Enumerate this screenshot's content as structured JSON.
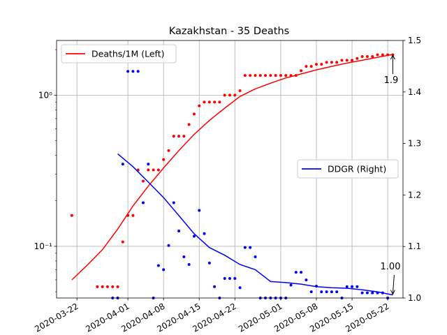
{
  "chart_data": {
    "type": "line",
    "title": "Kazakhstan - 35 Deaths",
    "xlabel": "",
    "ylabel_left": "",
    "ylabel_right": "",
    "x_domain": [
      "2020-03-18",
      "2020-05-25"
    ],
    "x_ticks": [
      "2020-03-22",
      "2020-04-01",
      "2020-04-08",
      "2020-04-15",
      "2020-04-22",
      "2020-05-01",
      "2020-05-08",
      "2020-05-15",
      "2020-05-22"
    ],
    "y_left": {
      "scale": "log",
      "ylim": [
        0.0455,
        2.3
      ],
      "ticks": [
        0.1,
        1.0
      ],
      "tick_labels": [
        "10⁻¹",
        "10⁰"
      ]
    },
    "y_right": {
      "scale": "linear",
      "ylim": [
        1.0,
        1.5
      ],
      "ticks": [
        1.0,
        1.1,
        1.2,
        1.3,
        1.4,
        1.5
      ],
      "tick_labels": [
        "1.0",
        "1.1",
        "1.2",
        "1.3",
        "1.4",
        "1.5"
      ]
    },
    "grid": true,
    "series": [
      {
        "name": "Deaths/1M (Left)",
        "axis": "left",
        "color": "#ff0000",
        "line": [
          [
            "2020-03-21",
            0.06
          ],
          [
            "2020-03-24",
            0.075
          ],
          [
            "2020-03-27",
            0.095
          ],
          [
            "2020-03-30",
            0.13
          ],
          [
            "2020-04-02",
            0.185
          ],
          [
            "2020-04-05",
            0.25
          ],
          [
            "2020-04-08",
            0.33
          ],
          [
            "2020-04-11",
            0.43
          ],
          [
            "2020-04-14",
            0.55
          ],
          [
            "2020-04-17",
            0.68
          ],
          [
            "2020-04-20",
            0.82
          ],
          [
            "2020-04-23",
            0.98
          ],
          [
            "2020-04-26",
            1.1
          ],
          [
            "2020-04-29",
            1.2
          ],
          [
            "2020-05-02",
            1.3
          ],
          [
            "2020-05-05",
            1.38
          ],
          [
            "2020-05-08",
            1.47
          ],
          [
            "2020-05-11",
            1.55
          ],
          [
            "2020-05-14",
            1.63
          ],
          [
            "2020-05-17",
            1.7
          ],
          [
            "2020-05-20",
            1.78
          ],
          [
            "2020-05-23",
            1.86
          ]
        ],
        "points": [
          [
            "2020-03-21",
            0.16
          ],
          [
            "2020-03-26",
            0.054
          ],
          [
            "2020-03-27",
            0.054
          ],
          [
            "2020-03-28",
            0.054
          ],
          [
            "2020-03-29",
            0.054
          ],
          [
            "2020-03-30",
            0.054
          ],
          [
            "2020-03-31",
            0.107
          ],
          [
            "2020-04-01",
            0.16
          ],
          [
            "2020-04-02",
            0.16
          ],
          [
            "2020-04-03",
            0.32
          ],
          [
            "2020-04-04",
            0.27
          ],
          [
            "2020-04-05",
            0.32
          ],
          [
            "2020-04-06",
            0.32
          ],
          [
            "2020-04-07",
            0.32
          ],
          [
            "2020-04-08",
            0.375
          ],
          [
            "2020-04-09",
            0.43
          ],
          [
            "2020-04-10",
            0.535
          ],
          [
            "2020-04-11",
            0.535
          ],
          [
            "2020-04-12",
            0.535
          ],
          [
            "2020-04-13",
            0.64
          ],
          [
            "2020-04-14",
            0.75
          ],
          [
            "2020-04-15",
            0.85
          ],
          [
            "2020-04-16",
            0.9
          ],
          [
            "2020-04-17",
            0.9
          ],
          [
            "2020-04-18",
            0.9
          ],
          [
            "2020-04-19",
            0.9
          ],
          [
            "2020-04-20",
            1.0
          ],
          [
            "2020-04-21",
            1.0
          ],
          [
            "2020-04-22",
            1.0
          ],
          [
            "2020-04-23",
            1.07
          ],
          [
            "2020-04-24",
            1.35
          ],
          [
            "2020-04-25",
            1.35
          ],
          [
            "2020-04-26",
            1.35
          ],
          [
            "2020-04-27",
            1.35
          ],
          [
            "2020-04-28",
            1.35
          ],
          [
            "2020-04-29",
            1.35
          ],
          [
            "2020-04-30",
            1.35
          ],
          [
            "2020-05-01",
            1.35
          ],
          [
            "2020-05-02",
            1.35
          ],
          [
            "2020-05-03",
            1.35
          ],
          [
            "2020-05-04",
            1.35
          ],
          [
            "2020-05-05",
            1.45
          ],
          [
            "2020-05-06",
            1.55
          ],
          [
            "2020-05-07",
            1.55
          ],
          [
            "2020-05-08",
            1.6
          ],
          [
            "2020-05-09",
            1.6
          ],
          [
            "2020-05-10",
            1.65
          ],
          [
            "2020-05-11",
            1.65
          ],
          [
            "2020-05-12",
            1.65
          ],
          [
            "2020-05-13",
            1.7
          ],
          [
            "2020-05-14",
            1.7
          ],
          [
            "2020-05-15",
            1.7
          ],
          [
            "2020-05-16",
            1.75
          ],
          [
            "2020-05-17",
            1.8
          ],
          [
            "2020-05-18",
            1.8
          ],
          [
            "2020-05-19",
            1.8
          ],
          [
            "2020-05-20",
            1.85
          ],
          [
            "2020-05-21",
            1.85
          ],
          [
            "2020-05-22",
            1.85
          ],
          [
            "2020-05-23",
            1.85
          ]
        ]
      },
      {
        "name": "DDGR (Right)",
        "axis": "right",
        "color": "#0000ff",
        "line": [
          [
            "2020-03-30",
            1.28
          ],
          [
            "2020-04-02",
            1.255
          ],
          [
            "2020-04-05",
            1.225
          ],
          [
            "2020-04-08",
            1.195
          ],
          [
            "2020-04-11",
            1.16
          ],
          [
            "2020-04-14",
            1.125
          ],
          [
            "2020-04-17",
            1.098
          ],
          [
            "2020-04-20",
            1.083
          ],
          [
            "2020-04-23",
            1.065
          ],
          [
            "2020-04-26",
            1.055
          ],
          [
            "2020-04-29",
            1.032
          ],
          [
            "2020-05-02",
            1.03
          ],
          [
            "2020-05-05",
            1.027
          ],
          [
            "2020-05-08",
            1.022
          ],
          [
            "2020-05-11",
            1.02
          ],
          [
            "2020-05-14",
            1.019
          ],
          [
            "2020-05-17",
            1.016
          ],
          [
            "2020-05-20",
            1.012
          ],
          [
            "2020-05-23",
            1.006
          ]
        ],
        "points": [
          [
            "2020-03-29",
            1.0
          ],
          [
            "2020-03-30",
            1.0
          ],
          [
            "2020-03-31",
            1.26
          ],
          [
            "2020-04-01",
            1.44
          ],
          [
            "2020-04-02",
            1.44
          ],
          [
            "2020-04-03",
            1.44
          ],
          [
            "2020-04-04",
            1.185
          ],
          [
            "2020-04-05",
            1.26
          ],
          [
            "2020-04-06",
            1.0
          ],
          [
            "2020-04-07",
            1.063
          ],
          [
            "2020-04-08",
            1.055
          ],
          [
            "2020-04-09",
            1.102
          ],
          [
            "2020-04-10",
            1.185
          ],
          [
            "2020-04-11",
            1.13
          ],
          [
            "2020-04-12",
            1.08
          ],
          [
            "2020-04-13",
            1.065
          ],
          [
            "2020-04-14",
            1.12
          ],
          [
            "2020-04-15",
            1.17
          ],
          [
            "2020-04-16",
            1.125
          ],
          [
            "2020-04-17",
            1.068
          ],
          [
            "2020-04-18",
            1.022
          ],
          [
            "2020-04-19",
            1.0
          ],
          [
            "2020-04-20",
            1.038
          ],
          [
            "2020-04-21",
            1.038
          ],
          [
            "2020-04-22",
            1.038
          ],
          [
            "2020-04-23",
            1.02
          ],
          [
            "2020-04-24",
            1.098
          ],
          [
            "2020-04-25",
            1.098
          ],
          [
            "2020-04-26",
            1.08
          ],
          [
            "2020-04-27",
            1.0
          ],
          [
            "2020-04-28",
            1.0
          ],
          [
            "2020-04-29",
            1.0
          ],
          [
            "2020-04-30",
            1.0
          ],
          [
            "2020-05-01",
            1.0
          ],
          [
            "2020-05-02",
            1.0
          ],
          [
            "2020-05-03",
            1.025
          ],
          [
            "2020-05-04",
            1.05
          ],
          [
            "2020-05-05",
            1.05
          ],
          [
            "2020-05-06",
            1.035
          ],
          [
            "2020-05-07",
            1.012
          ],
          [
            "2020-05-08",
            1.023
          ],
          [
            "2020-05-09",
            1.012
          ],
          [
            "2020-05-10",
            1.012
          ],
          [
            "2020-05-11",
            1.012
          ],
          [
            "2020-05-12",
            1.012
          ],
          [
            "2020-05-13",
            1.0
          ],
          [
            "2020-05-14",
            1.022
          ],
          [
            "2020-05-15",
            1.022
          ],
          [
            "2020-05-16",
            1.022
          ],
          [
            "2020-05-17",
            1.01
          ],
          [
            "2020-05-18",
            1.01
          ],
          [
            "2020-05-19",
            1.01
          ],
          [
            "2020-05-20",
            1.01
          ],
          [
            "2020-05-21",
            1.01
          ],
          [
            "2020-05-22",
            1.0
          ]
        ]
      }
    ],
    "legends": [
      {
        "label": "Deaths/1M (Left)",
        "color": "#ff0000",
        "placement": "upper-left"
      },
      {
        "label": "DDGR (Right)",
        "color": "#0000ff",
        "placement": "center-right"
      }
    ],
    "annotations": [
      {
        "text": "1.9",
        "target_date": "2020-05-23",
        "target_value": 1.86,
        "axis": "left"
      },
      {
        "text": "1.00",
        "target_date": "2020-05-23",
        "target_value": 1.006,
        "axis": "right"
      }
    ]
  }
}
